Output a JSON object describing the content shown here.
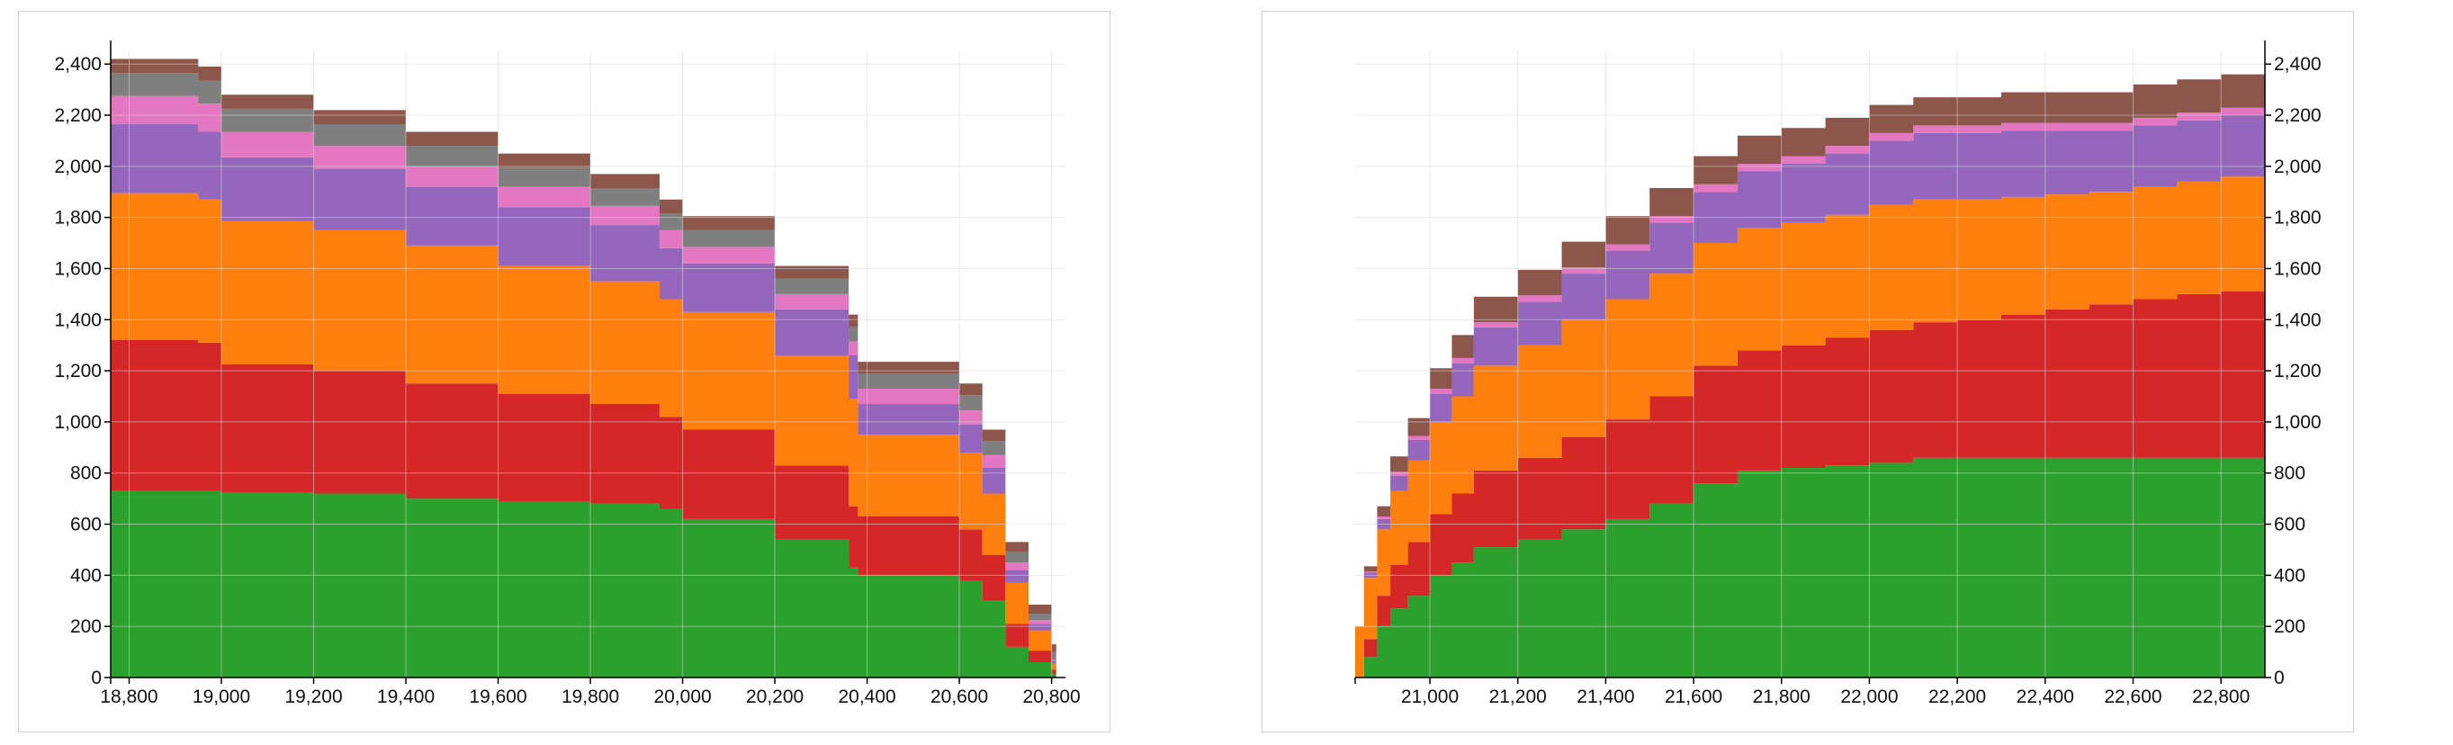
{
  "colors": {
    "green": "#2ca02c",
    "red": "#d62728",
    "orange": "#ff7f0e",
    "purple": "#9467bd",
    "pink": "#e377c2",
    "gray": "#7f7f7f",
    "brown": "#8c564b"
  },
  "chart_data": [
    {
      "type": "area",
      "stacked": true,
      "step": true,
      "grid": true,
      "legend": "none",
      "x_axis": "bottom",
      "y_axis": "left",
      "xlim": [
        18760,
        20830
      ],
      "ylim": [
        0,
        2450
      ],
      "x_ticks": [
        "18,800",
        "19,000",
        "19,200",
        "19,400",
        "19,600",
        "19,800",
        "20,000",
        "20,200",
        "20,400",
        "20,600",
        "20,800"
      ],
      "y_ticks": [
        "0",
        "200",
        "400",
        "600",
        "800",
        "1,000",
        "1,200",
        "1,400",
        "1,600",
        "1,800",
        "2,000",
        "2,200",
        "2,400"
      ],
      "x": [
        18760,
        18950,
        19000,
        19200,
        19400,
        19600,
        19800,
        19950,
        20000,
        20200,
        20360,
        20380,
        20600,
        20650,
        20700,
        20750,
        20800,
        20810
      ],
      "series": [
        {
          "color_key": "green",
          "values": [
            730,
            730,
            725,
            720,
            700,
            690,
            680,
            660,
            620,
            540,
            430,
            400,
            380,
            300,
            120,
            60,
            15,
            0
          ]
        },
        {
          "color_key": "red",
          "values": [
            590,
            580,
            500,
            480,
            450,
            420,
            390,
            360,
            350,
            290,
            240,
            230,
            200,
            180,
            90,
            45,
            15,
            0
          ]
        },
        {
          "color_key": "orange",
          "values": [
            575,
            560,
            560,
            550,
            540,
            500,
            480,
            460,
            460,
            430,
            420,
            320,
            300,
            240,
            160,
            80,
            25,
            0
          ]
        },
        {
          "color_key": "purple",
          "values": [
            270,
            265,
            250,
            240,
            230,
            230,
            220,
            200,
            190,
            180,
            170,
            120,
            110,
            100,
            50,
            25,
            10,
            0
          ]
        },
        {
          "color_key": "pink",
          "values": [
            110,
            110,
            100,
            90,
            80,
            80,
            75,
            70,
            65,
            60,
            55,
            60,
            55,
            50,
            30,
            15,
            5,
            0
          ]
        },
        {
          "color_key": "gray",
          "values": [
            90,
            90,
            90,
            85,
            80,
            75,
            70,
            65,
            65,
            60,
            55,
            60,
            60,
            55,
            40,
            25,
            30,
            0
          ]
        },
        {
          "color_key": "brown",
          "values": [
            55,
            55,
            55,
            55,
            55,
            55,
            55,
            55,
            55,
            50,
            50,
            45,
            45,
            45,
            40,
            35,
            30,
            0
          ]
        }
      ]
    },
    {
      "type": "area",
      "stacked": true,
      "step": true,
      "grid": true,
      "legend": "none",
      "x_axis": "bottom",
      "y_axis": "right",
      "xlim": [
        20830,
        22900
      ],
      "ylim": [
        0,
        2450
      ],
      "x_ticks": [
        "21,000",
        "21,200",
        "21,400",
        "21,600",
        "21,800",
        "22,000",
        "22,200",
        "22,400",
        "22,600",
        "22,800"
      ],
      "y_ticks": [
        "0",
        "200",
        "400",
        "600",
        "800",
        "1,000",
        "1,200",
        "1,400",
        "1,600",
        "1,800",
        "2,000",
        "2,200",
        "2,400"
      ],
      "x": [
        20830,
        20850,
        20880,
        20910,
        20950,
        21000,
        21050,
        21100,
        21200,
        21300,
        21400,
        21500,
        21600,
        21700,
        21800,
        21900,
        22000,
        22100,
        22200,
        22300,
        22400,
        22500,
        22600,
        22700,
        22800,
        22900
      ],
      "series": [
        {
          "color_key": "green",
          "values": [
            0,
            80,
            200,
            270,
            320,
            400,
            450,
            510,
            540,
            580,
            620,
            680,
            760,
            810,
            820,
            830,
            840,
            860,
            860,
            860,
            860,
            860,
            860,
            860,
            860,
            860
          ]
        },
        {
          "color_key": "red",
          "values": [
            0,
            70,
            120,
            170,
            210,
            240,
            270,
            300,
            320,
            360,
            390,
            420,
            460,
            470,
            480,
            500,
            520,
            530,
            540,
            560,
            580,
            600,
            620,
            640,
            650,
            660
          ]
        },
        {
          "color_key": "orange",
          "values": [
            200,
            240,
            260,
            290,
            320,
            360,
            380,
            410,
            440,
            460,
            470,
            480,
            480,
            480,
            480,
            480,
            490,
            480,
            470,
            460,
            450,
            440,
            440,
            440,
            450,
            460
          ]
        },
        {
          "color_key": "purple",
          "values": [
            0,
            20,
            40,
            60,
            80,
            110,
            130,
            150,
            170,
            180,
            190,
            200,
            200,
            220,
            230,
            240,
            250,
            260,
            260,
            260,
            250,
            240,
            240,
            240,
            240,
            240
          ]
        },
        {
          "color_key": "pink",
          "values": [
            0,
            5,
            10,
            15,
            15,
            20,
            20,
            20,
            25,
            25,
            25,
            25,
            30,
            30,
            30,
            30,
            30,
            30,
            30,
            30,
            30,
            30,
            30,
            30,
            30,
            30
          ]
        },
        {
          "color_key": "gray",
          "values": [
            0,
            0,
            0,
            0,
            0,
            0,
            0,
            0,
            0,
            0,
            0,
            0,
            0,
            0,
            0,
            0,
            0,
            0,
            0,
            0,
            0,
            0,
            0,
            0,
            0,
            0
          ]
        },
        {
          "color_key": "brown",
          "values": [
            0,
            20,
            40,
            60,
            70,
            80,
            90,
            100,
            100,
            100,
            110,
            110,
            110,
            110,
            110,
            110,
            110,
            110,
            110,
            120,
            120,
            120,
            130,
            130,
            130,
            140
          ]
        }
      ]
    }
  ]
}
